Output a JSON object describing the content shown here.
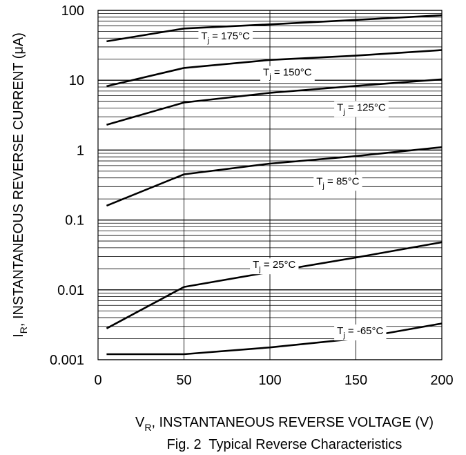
{
  "chart_data": {
    "type": "line",
    "title": "Fig. 2  Typical Reverse Characteristics",
    "xlabel": {
      "symbol": "V",
      "sub": "R",
      "text": ", INSTANTANEOUS REVERSE VOLTAGE (V)"
    },
    "ylabel": {
      "symbol": "I",
      "sub": "R",
      "text": ", INSTANTANEOUS REVERSE CURRENT (μA)"
    },
    "x_ticks": [
      0,
      50,
      100,
      150,
      200
    ],
    "x_tick_labels": [
      "0",
      "50",
      "100",
      "150",
      "200"
    ],
    "xlim": [
      0,
      200
    ],
    "y_scale": "log",
    "ylim": [
      0.001,
      100
    ],
    "y_ticks": [
      0.001,
      0.01,
      0.1,
      1,
      10,
      100
    ],
    "y_tick_labels": [
      "0.001",
      "0.01",
      "0.1",
      "1",
      "10",
      "100"
    ],
    "grid": true,
    "series": [
      {
        "name": "Tj = 175°C",
        "label_main": "T",
        "label_sub": "j",
        "label_rest": " = 175°C",
        "x": [
          5,
          50,
          100,
          150,
          200
        ],
        "y": [
          36,
          55,
          63,
          73,
          85
        ]
      },
      {
        "name": "Tj = 150°C",
        "label_main": "T",
        "label_sub": "j",
        "label_rest": " = 150°C",
        "x": [
          5,
          50,
          100,
          150,
          200
        ],
        "y": [
          8.2,
          15,
          19.5,
          22.5,
          27
        ]
      },
      {
        "name": "Tj = 125°C",
        "label_main": "T",
        "label_sub": "j",
        "label_rest": " = 125°C",
        "x": [
          5,
          50,
          100,
          150,
          200
        ],
        "y": [
          2.3,
          4.8,
          6.6,
          8.3,
          10.3
        ]
      },
      {
        "name": "Tj = 85°C",
        "label_main": "T",
        "label_sub": "j",
        "label_rest": " = 85°C",
        "x": [
          5,
          50,
          100,
          150,
          200
        ],
        "y": [
          0.16,
          0.45,
          0.64,
          0.82,
          1.1
        ]
      },
      {
        "name": "Tj = 25°C",
        "label_main": "T",
        "label_sub": "j",
        "label_rest": " = 25°C",
        "x": [
          5,
          50,
          100,
          150,
          200
        ],
        "y": [
          0.0028,
          0.011,
          0.018,
          0.029,
          0.048
        ]
      },
      {
        "name": "Tj = -65°C",
        "label_main": "T",
        "label_sub": "j",
        "label_rest": " = -65°C",
        "x": [
          5,
          50,
          100,
          150,
          200
        ],
        "y": [
          0.0012,
          0.0012,
          0.0015,
          0.002,
          0.0033
        ]
      }
    ]
  }
}
